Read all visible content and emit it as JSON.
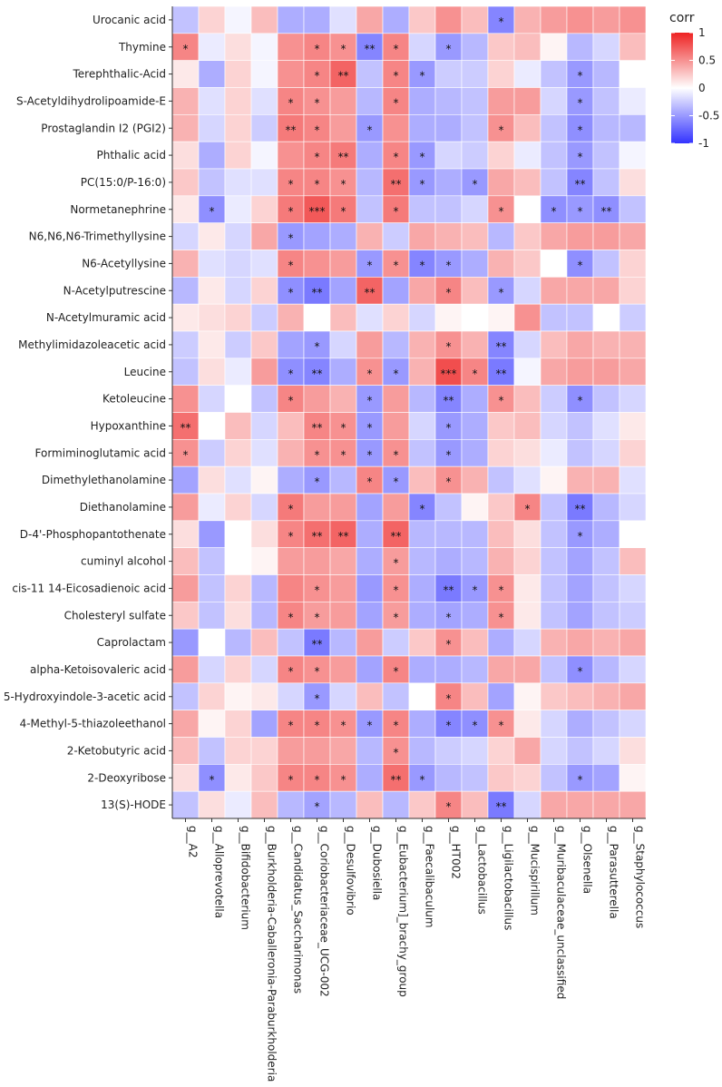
{
  "chart_data": {
    "type": "heatmap",
    "rows": [
      "Urocanic acid",
      "Thymine",
      "Terephthalic-Acid",
      "S-Acetyldihydrolipoamide-E",
      "Prostaglandin I2 (PGI2)",
      "Phthalic acid",
      "PC(15:0/P-16:0)",
      "Normetanephrine",
      "N6,N6,N6-Trimethyllysine",
      "N6-Acetyllysine",
      "N-Acetylputrescine",
      "N-Acetylmuramic acid",
      "Methylimidazoleacetic acid",
      "Leucine",
      "Ketoleucine",
      "Hypoxanthine",
      "Formiminoglutamic acid",
      "Dimethylethanolamine",
      "Diethanolamine",
      "D-4'-Phosphopantothenate",
      "cuminyl alcohol",
      "cis-11 14-Eicosadienoic acid",
      "Cholesteryl sulfate",
      "Caprolactam",
      "alpha-Ketoisovaleric acid",
      "5-Hydroxyindole-3-acetic acid",
      "4-Methyl-5-thiazoleethanol",
      "2-Ketobutyric acid",
      "2-Deoxyribose",
      "13(S)-HODE"
    ],
    "columns": [
      "g__A2",
      "g__Alloprevotella",
      "g__Bifidobacterium",
      "g__Burkholderia-Caballeronia-Paraburkholderia",
      "g__Candidatus_Saccharimonas",
      "g__Coriobacteriaceae_UCG-002",
      "g__Desulfovibrio",
      "g__Dubosiella",
      "g__Eubacterium]_brachy_group",
      "g__Faecalibaculum",
      "g__HT002",
      "g__Lactobacillus",
      "g__Ligilactobacillus",
      "g__Mucispirillum",
      "g__Muribaculaceae_unclassified",
      "g__Olsenella",
      "g__Parasutterella",
      "g__Staphylococcus"
    ],
    "values": [
      [
        -0.3,
        0.2,
        -0.05,
        0.3,
        -0.4,
        -0.4,
        -0.15,
        0.4,
        -0.4,
        0.25,
        0.5,
        0.3,
        -0.6,
        0.35,
        0.45,
        0.5,
        0.45,
        0.5
      ],
      [
        0.55,
        -0.1,
        0.15,
        -0.05,
        0.5,
        0.55,
        0.5,
        -0.6,
        0.55,
        -0.2,
        -0.5,
        -0.35,
        0.25,
        0.3,
        0.05,
        -0.35,
        -0.2,
        0.3
      ],
      [
        0.1,
        -0.4,
        0.2,
        -0.05,
        0.5,
        0.55,
        0.7,
        -0.3,
        0.55,
        -0.5,
        -0.25,
        -0.25,
        0.2,
        -0.1,
        -0.3,
        -0.5,
        -0.35,
        0.0
      ],
      [
        0.35,
        -0.15,
        0.2,
        -0.15,
        0.55,
        0.5,
        0.45,
        -0.35,
        0.55,
        -0.4,
        -0.35,
        -0.3,
        0.45,
        0.45,
        -0.2,
        -0.5,
        -0.3,
        -0.1
      ],
      [
        0.35,
        -0.2,
        0.2,
        -0.25,
        0.6,
        0.55,
        0.45,
        -0.5,
        0.5,
        -0.4,
        -0.4,
        -0.3,
        0.5,
        0.3,
        -0.3,
        -0.55,
        -0.35,
        -0.35
      ],
      [
        0.15,
        -0.4,
        0.2,
        -0.05,
        0.5,
        0.55,
        0.6,
        -0.4,
        0.55,
        -0.5,
        -0.2,
        -0.25,
        0.2,
        -0.1,
        -0.3,
        -0.5,
        -0.3,
        -0.05
      ],
      [
        0.25,
        -0.3,
        -0.15,
        -0.15,
        0.55,
        0.55,
        0.5,
        -0.35,
        0.65,
        -0.5,
        -0.4,
        -0.5,
        0.4,
        0.3,
        -0.3,
        -0.6,
        -0.3,
        0.15
      ],
      [
        0.1,
        -0.55,
        -0.1,
        0.2,
        0.6,
        0.75,
        0.6,
        -0.3,
        0.6,
        -0.3,
        -0.3,
        -0.2,
        0.5,
        0.0,
        -0.55,
        -0.5,
        -0.55,
        -0.3
      ],
      [
        -0.2,
        0.1,
        -0.2,
        0.4,
        -0.5,
        -0.45,
        -0.4,
        0.35,
        -0.25,
        0.4,
        0.35,
        0.3,
        -0.35,
        0.25,
        0.4,
        0.45,
        0.45,
        0.4
      ],
      [
        0.35,
        -0.15,
        -0.2,
        -0.15,
        0.55,
        0.5,
        0.45,
        -0.5,
        0.5,
        -0.6,
        -0.5,
        -0.4,
        0.35,
        0.25,
        0.0,
        -0.55,
        -0.3,
        0.2
      ],
      [
        -0.35,
        0.1,
        -0.2,
        0.2,
        -0.55,
        -0.65,
        -0.45,
        0.7,
        -0.45,
        0.4,
        0.55,
        0.3,
        -0.5,
        -0.2,
        0.4,
        0.4,
        0.4,
        0.2
      ],
      [
        0.1,
        0.15,
        0.2,
        -0.25,
        0.35,
        0.0,
        0.3,
        -0.15,
        0.2,
        -0.2,
        0.05,
        0.0,
        0.05,
        0.5,
        -0.3,
        -0.3,
        0.0,
        -0.25
      ],
      [
        -0.25,
        0.1,
        -0.25,
        0.25,
        -0.45,
        -0.5,
        -0.2,
        0.45,
        -0.35,
        0.35,
        0.5,
        0.35,
        -0.6,
        -0.2,
        0.3,
        0.4,
        0.35,
        0.35
      ],
      [
        -0.3,
        0.15,
        -0.1,
        0.45,
        -0.55,
        -0.6,
        -0.4,
        0.5,
        -0.5,
        0.35,
        0.8,
        0.55,
        -0.65,
        -0.05,
        0.4,
        0.45,
        0.45,
        0.4
      ],
      [
        0.5,
        -0.2,
        0.0,
        -0.3,
        0.55,
        0.45,
        0.35,
        -0.5,
        0.45,
        -0.35,
        -0.6,
        -0.4,
        0.5,
        0.3,
        -0.25,
        -0.55,
        -0.3,
        -0.2
      ],
      [
        0.65,
        0.0,
        0.3,
        -0.2,
        0.3,
        0.55,
        0.5,
        -0.5,
        0.45,
        -0.2,
        -0.5,
        -0.4,
        0.25,
        0.3,
        -0.2,
        -0.3,
        -0.15,
        0.1
      ],
      [
        0.5,
        -0.25,
        0.2,
        -0.15,
        0.35,
        0.5,
        0.5,
        -0.5,
        0.5,
        -0.3,
        -0.5,
        -0.4,
        0.2,
        0.15,
        -0.1,
        -0.3,
        -0.2,
        0.2
      ],
      [
        -0.45,
        0.15,
        -0.15,
        0.05,
        -0.4,
        -0.5,
        -0.35,
        0.55,
        -0.5,
        0.3,
        0.5,
        0.35,
        -0.3,
        -0.15,
        0.05,
        0.35,
        0.35,
        -0.15
      ],
      [
        0.45,
        -0.1,
        0.2,
        -0.2,
        0.6,
        0.45,
        0.45,
        -0.45,
        0.45,
        -0.6,
        -0.3,
        0.05,
        0.25,
        0.55,
        -0.3,
        -0.65,
        -0.35,
        -0.2
      ],
      [
        0.15,
        -0.5,
        0.0,
        0.15,
        0.55,
        0.65,
        0.7,
        -0.4,
        0.7,
        -0.35,
        -0.35,
        -0.35,
        0.3,
        0.15,
        -0.3,
        -0.5,
        -0.4,
        0.0
      ],
      [
        0.3,
        -0.3,
        0.0,
        0.05,
        0.45,
        0.45,
        0.4,
        -0.4,
        0.45,
        -0.35,
        -0.4,
        -0.35,
        0.35,
        0.2,
        -0.3,
        -0.45,
        -0.3,
        0.3
      ],
      [
        0.45,
        -0.3,
        0.2,
        -0.35,
        0.55,
        0.5,
        0.45,
        -0.5,
        0.5,
        -0.4,
        -0.65,
        -0.5,
        0.5,
        0.1,
        -0.3,
        -0.45,
        -0.3,
        -0.2
      ],
      [
        0.25,
        -0.3,
        0.15,
        -0.35,
        0.55,
        0.45,
        0.45,
        -0.45,
        0.45,
        -0.4,
        -0.45,
        -0.4,
        0.5,
        0.1,
        -0.3,
        -0.45,
        -0.3,
        -0.25
      ],
      [
        -0.5,
        0.0,
        -0.35,
        0.3,
        -0.3,
        -0.65,
        -0.35,
        0.45,
        -0.25,
        0.25,
        0.5,
        0.3,
        -0.4,
        -0.2,
        0.35,
        0.4,
        0.35,
        0.4
      ],
      [
        0.45,
        -0.2,
        0.2,
        -0.2,
        0.55,
        0.5,
        0.45,
        -0.45,
        0.55,
        -0.4,
        -0.4,
        -0.35,
        0.4,
        0.4,
        -0.3,
        -0.55,
        -0.35,
        -0.2
      ],
      [
        -0.3,
        0.2,
        0.05,
        0.1,
        -0.2,
        -0.5,
        -0.2,
        0.3,
        -0.3,
        0.0,
        0.55,
        0.3,
        -0.45,
        0.05,
        0.25,
        0.3,
        0.35,
        0.4
      ],
      [
        0.4,
        0.05,
        0.2,
        -0.45,
        0.55,
        0.55,
        0.5,
        -0.5,
        0.55,
        -0.4,
        -0.6,
        -0.55,
        0.5,
        0.1,
        -0.2,
        -0.4,
        -0.3,
        -0.2
      ],
      [
        0.3,
        -0.3,
        0.2,
        0.2,
        0.45,
        0.45,
        0.4,
        -0.35,
        0.5,
        -0.35,
        -0.25,
        -0.2,
        0.2,
        0.4,
        -0.2,
        -0.3,
        -0.2,
        0.15
      ],
      [
        0.15,
        -0.55,
        0.1,
        0.25,
        0.55,
        0.55,
        0.5,
        -0.4,
        0.65,
        -0.5,
        -0.35,
        -0.3,
        0.25,
        0.2,
        -0.3,
        -0.5,
        -0.45,
        0.05
      ],
      [
        -0.3,
        0.15,
        -0.1,
        0.3,
        -0.35,
        -0.45,
        -0.35,
        0.3,
        -0.35,
        0.25,
        0.55,
        0.3,
        -0.65,
        -0.2,
        0.4,
        0.4,
        0.4,
        0.4
      ]
    ],
    "stars": [
      [
        "",
        "",
        "",
        "",
        "",
        "",
        "",
        "",
        "",
        "",
        "",
        "",
        "*",
        "",
        "",
        "",
        "",
        ""
      ],
      [
        "*",
        "",
        "",
        "",
        "",
        "*",
        "*",
        "**",
        "*",
        "",
        "*",
        "",
        "",
        "",
        "",
        "",
        "",
        ""
      ],
      [
        "",
        "",
        "",
        "",
        "",
        "*",
        "**",
        "",
        "*",
        "*",
        "",
        "",
        "",
        "",
        "",
        "*",
        "",
        ""
      ],
      [
        "",
        "",
        "",
        "",
        "*",
        "*",
        "",
        "",
        "*",
        "",
        "",
        "",
        "",
        "",
        "",
        "*",
        "",
        ""
      ],
      [
        "",
        "",
        "",
        "",
        "**",
        "*",
        "",
        "*",
        "",
        "",
        "",
        "",
        "*",
        "",
        "",
        "*",
        "",
        ""
      ],
      [
        "",
        "",
        "",
        "",
        "",
        "*",
        "**",
        "",
        "*",
        "*",
        "",
        "",
        "",
        "",
        "",
        "*",
        "",
        ""
      ],
      [
        "",
        "",
        "",
        "",
        "*",
        "*",
        "*",
        "",
        "**",
        "*",
        "",
        "*",
        "",
        "",
        "",
        "**",
        "",
        ""
      ],
      [
        "",
        "*",
        "",
        "",
        "*",
        "***",
        "*",
        "",
        "*",
        "",
        "",
        "",
        "*",
        "",
        "*",
        "*",
        "**",
        ""
      ],
      [
        "",
        "",
        "",
        "",
        "*",
        "",
        "",
        "",
        "",
        "",
        "",
        "",
        "",
        "",
        "",
        "",
        "",
        ""
      ],
      [
        "",
        "",
        "",
        "",
        "*",
        "",
        "",
        "*",
        "*",
        "*",
        "*",
        "",
        "",
        "",
        "",
        "*",
        "",
        ""
      ],
      [
        "",
        "",
        "",
        "",
        "*",
        "**",
        "",
        "**",
        "",
        "",
        "*",
        "",
        "*",
        "",
        "",
        "",
        "",
        ""
      ],
      [
        "",
        "",
        "",
        "",
        "",
        "",
        "",
        "",
        "",
        "",
        "",
        "",
        "",
        "",
        "",
        "",
        "",
        ""
      ],
      [
        "",
        "",
        "",
        "",
        "",
        "*",
        "",
        "",
        "",
        "",
        "*",
        "",
        "**",
        "",
        "",
        "",
        "",
        ""
      ],
      [
        "",
        "",
        "",
        "",
        "*",
        "**",
        "",
        "*",
        "*",
        "",
        "***",
        "*",
        "**",
        "",
        "",
        "",
        "",
        ""
      ],
      [
        "",
        "",
        "",
        "",
        "*",
        "",
        "",
        "*",
        "",
        "",
        "**",
        "",
        "*",
        "",
        "",
        "*",
        "",
        ""
      ],
      [
        "**",
        "",
        "",
        "",
        "",
        "**",
        "*",
        "*",
        "",
        "",
        "*",
        "",
        "",
        "",
        "",
        "",
        "",
        ""
      ],
      [
        "*",
        "",
        "",
        "",
        "",
        "*",
        "*",
        "*",
        "*",
        "",
        "*",
        "",
        "",
        "",
        "",
        "",
        "",
        ""
      ],
      [
        "",
        "",
        "",
        "",
        "",
        "*",
        "",
        "*",
        "*",
        "",
        "*",
        "",
        "",
        "",
        "",
        "",
        "",
        ""
      ],
      [
        "",
        "",
        "",
        "",
        "*",
        "",
        "",
        "",
        "",
        "*",
        "",
        "",
        "",
        "*",
        "",
        "**",
        "",
        ""
      ],
      [
        "",
        "",
        "",
        "",
        "*",
        "**",
        "**",
        "",
        "**",
        "",
        "",
        "",
        "",
        "",
        "",
        "*",
        "",
        ""
      ],
      [
        "",
        "",
        "",
        "",
        "",
        "",
        "",
        "",
        "*",
        "",
        "",
        "",
        "",
        "",
        "",
        "",
        "",
        ""
      ],
      [
        "",
        "",
        "",
        "",
        "",
        "*",
        "",
        "",
        "*",
        "",
        "**",
        "*",
        "*",
        "",
        "",
        "",
        "",
        ""
      ],
      [
        "",
        "",
        "",
        "",
        "*",
        "*",
        "",
        "",
        "*",
        "",
        "*",
        "",
        "*",
        "",
        "",
        "",
        "",
        ""
      ],
      [
        "",
        "",
        "",
        "",
        "",
        "**",
        "",
        "",
        "",
        "",
        "*",
        "",
        "",
        "",
        "",
        "",
        "",
        ""
      ],
      [
        "",
        "",
        "",
        "",
        "*",
        "*",
        "",
        "",
        "*",
        "",
        "",
        "",
        "",
        "",
        "",
        "*",
        "",
        ""
      ],
      [
        "",
        "",
        "",
        "",
        "",
        "*",
        "",
        "",
        "",
        "",
        "*",
        "",
        "",
        "",
        "",
        "",
        "",
        ""
      ],
      [
        "",
        "",
        "",
        "",
        "*",
        "*",
        "*",
        "*",
        "*",
        "",
        "*",
        "*",
        "*",
        "",
        "",
        "",
        "",
        ""
      ],
      [
        "",
        "",
        "",
        "",
        "",
        "",
        "",
        "",
        "*",
        "",
        "",
        "",
        "",
        "",
        "",
        "",
        "",
        ""
      ],
      [
        "",
        "*",
        "",
        "",
        "*",
        "*",
        "*",
        "",
        "**",
        "*",
        "",
        "",
        "",
        "",
        "",
        "*",
        "",
        ""
      ],
      [
        "",
        "",
        "",
        "",
        "",
        "*",
        "",
        "",
        "",
        "",
        "*",
        "",
        "**",
        "",
        "",
        "",
        "",
        ""
      ]
    ],
    "legend": {
      "title": "corr",
      "ticks": [
        1,
        0.5,
        0,
        -0.5,
        -1
      ],
      "tick_labels": [
        "1",
        "0.5",
        "0",
        "-0.5",
        "-1"
      ]
    },
    "color_scale": {
      "low": "#3333ff",
      "mid": "#ffffff",
      "high": "#ee2222"
    },
    "value_range": [
      -1,
      1
    ]
  }
}
